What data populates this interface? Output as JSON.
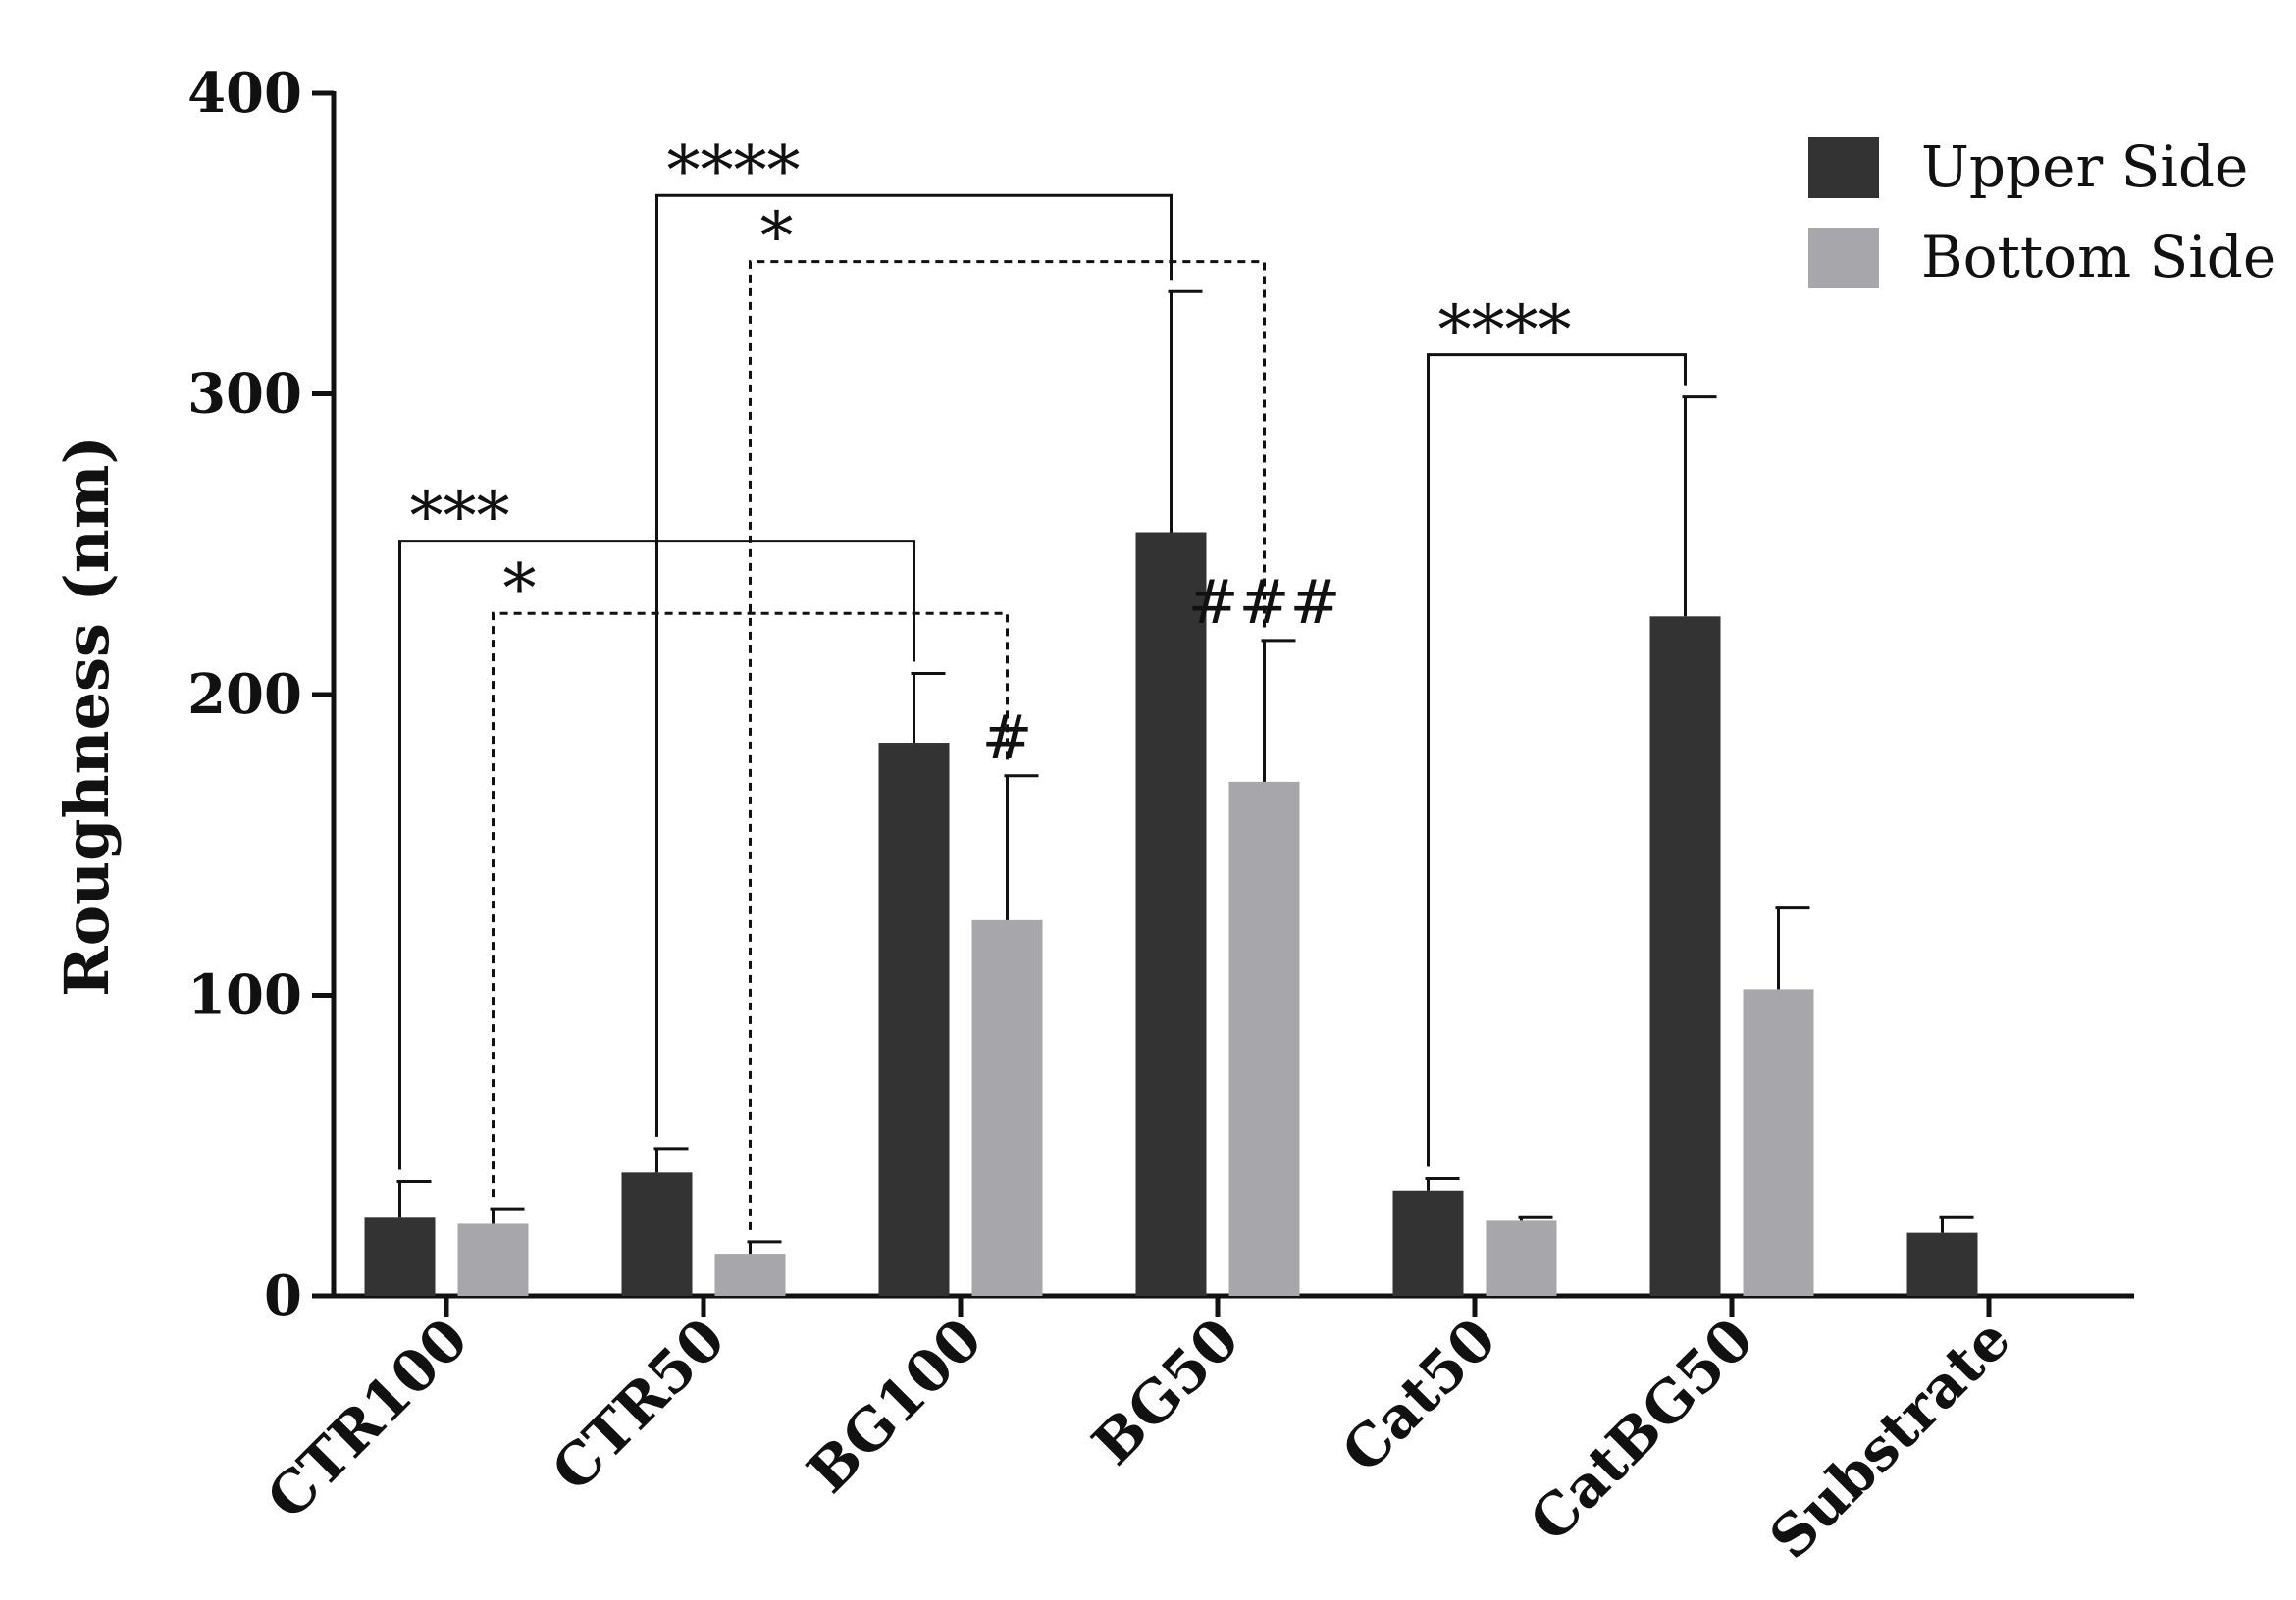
{
  "chart_data": {
    "type": "bar",
    "title": "",
    "xlabel": "",
    "ylabel": "Roughness (nm)",
    "ylim": [
      0,
      400
    ],
    "yticks": [
      0,
      100,
      200,
      300,
      400
    ],
    "grid": false,
    "legend_position": "top-right",
    "categories": [
      "CTR100",
      "CTR50",
      "BG100",
      "BG50",
      "Cat50",
      "CatBG50",
      "Substrate"
    ],
    "series": [
      {
        "name": "Upper Side",
        "color": "#333333",
        "values": [
          26,
          41,
          184,
          254,
          35,
          226,
          21
        ],
        "errors": [
          12,
          8,
          23,
          80,
          4,
          73,
          5
        ]
      },
      {
        "name": "Bottom Side",
        "color": "#a7a7ab",
        "values": [
          24,
          14,
          125,
          171,
          25,
          102,
          null
        ],
        "errors": [
          5,
          4,
          48,
          47,
          1,
          27,
          null
        ]
      }
    ],
    "comparisons": [
      {
        "label": "***",
        "style": "solid",
        "from": {
          "category": "CTR100",
          "series": 0
        },
        "to": {
          "category": "BG100",
          "series": 0
        },
        "y": 251
      },
      {
        "label": "*",
        "style": "dashed",
        "from": {
          "category": "CTR100",
          "series": 1
        },
        "to": {
          "category": "BG100",
          "series": 1
        },
        "y": 227
      },
      {
        "label": "****",
        "style": "solid",
        "from": {
          "category": "CTR50",
          "series": 0
        },
        "to": {
          "category": "BG50",
          "series": 0
        },
        "y": 366
      },
      {
        "label": "*",
        "style": "dashed",
        "from": {
          "category": "CTR50",
          "series": 1
        },
        "to": {
          "category": "BG50",
          "series": 1
        },
        "y": 344
      },
      {
        "label": "****",
        "style": "solid",
        "from": {
          "category": "Cat50",
          "series": 0
        },
        "to": {
          "category": "CatBG50",
          "series": 0
        },
        "y": 313
      }
    ],
    "annotations": [
      {
        "text": "#",
        "category": "BG100",
        "series": 1
      },
      {
        "text": "###",
        "category": "BG50",
        "series": 1
      }
    ]
  }
}
